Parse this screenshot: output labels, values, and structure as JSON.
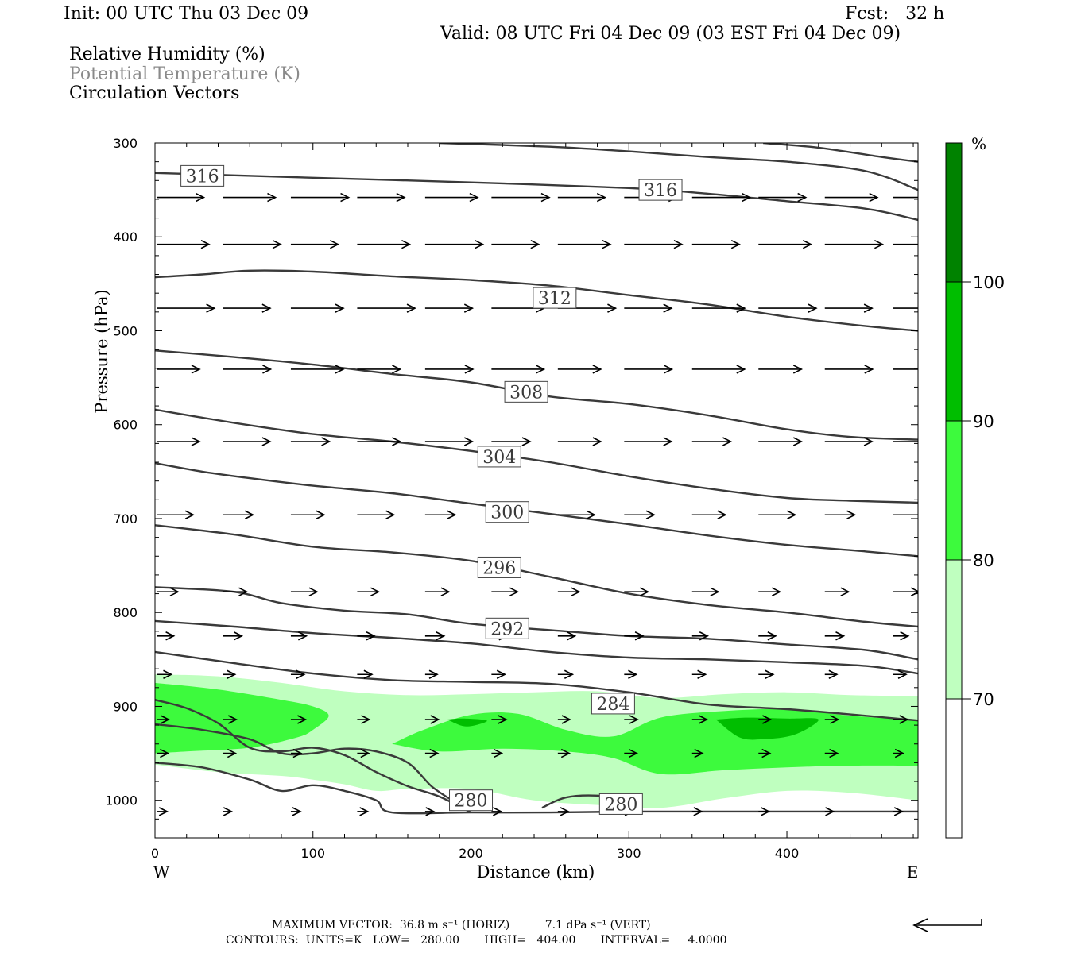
{
  "header": {
    "init": "Init: 00 UTC Thu 03 Dec 09",
    "fcst": "Fcst:   32 h",
    "valid": "Valid: 08 UTC Fri 04 Dec 09 (03 EST Fri 04 Dec 09)",
    "legend": [
      "Relative Humidity (%)",
      "Potential Temperature (K)",
      "Circulation Vectors"
    ]
  },
  "chart_data": {
    "type": "cross-section",
    "xlabel": "Distance (km)",
    "ylabel": "Pressure (hPa)",
    "xlim": [
      0,
      483
    ],
    "ylim": [
      1040,
      300
    ],
    "y_log_scale": false,
    "x_ticks": [
      0,
      100,
      200,
      300,
      400
    ],
    "y_ticks": [
      300,
      400,
      500,
      600,
      700,
      800,
      900,
      1000
    ],
    "x_end_labels": {
      "left": "W",
      "right": "E"
    },
    "colorbar": {
      "unit": "%",
      "levels": [
        70,
        80,
        90,
        100
      ],
      "colors": [
        "#ffffff",
        "#bfffbf",
        "#3dfa3d",
        "#00be00",
        "#008200"
      ]
    },
    "rh_fill": [
      {
        "level": 70,
        "color": "#bfffbf",
        "upper": [
          [
            0,
            866
          ],
          [
            40,
            868
          ],
          [
            80,
            875
          ],
          [
            120,
            884
          ],
          [
            160,
            888
          ],
          [
            200,
            887
          ],
          [
            240,
            885
          ],
          [
            280,
            884
          ],
          [
            320,
            891
          ],
          [
            360,
            887
          ],
          [
            400,
            885
          ],
          [
            440,
            888
          ],
          [
            483,
            889
          ]
        ],
        "lower": [
          [
            483,
            1000
          ],
          [
            440,
            992
          ],
          [
            400,
            990
          ],
          [
            360,
            998
          ],
          [
            320,
            1008
          ],
          [
            280,
            1005
          ],
          [
            240,
            1000
          ],
          [
            200,
            988
          ],
          [
            160,
            988
          ],
          [
            140,
            990
          ],
          [
            120,
            983
          ],
          [
            100,
            978
          ],
          [
            80,
            974
          ],
          [
            40,
            970
          ],
          [
            0,
            962
          ]
        ]
      },
      {
        "level": 80,
        "color": "#3dfa3d",
        "upper": [
          [
            0,
            875
          ],
          [
            40,
            882
          ],
          [
            80,
            893
          ],
          [
            100,
            900
          ],
          [
            110,
            910
          ],
          [
            100,
            925
          ],
          [
            90,
            933
          ],
          [
            60,
            944
          ],
          [
            20,
            948
          ],
          [
            0,
            950
          ]
        ],
        "lower": []
      },
      {
        "level": 80,
        "color": "#3dfa3d",
        "upper": [
          [
            150,
            940
          ],
          [
            170,
            925
          ],
          [
            200,
            909
          ],
          [
            230,
            908
          ],
          [
            260,
            925
          ],
          [
            290,
            932
          ],
          [
            320,
            912
          ],
          [
            360,
            905
          ],
          [
            400,
            903
          ],
          [
            440,
            910
          ],
          [
            483,
            915
          ]
        ],
        "lower": [
          [
            483,
            963
          ],
          [
            440,
            963
          ],
          [
            400,
            965
          ],
          [
            360,
            968
          ],
          [
            320,
            972
          ],
          [
            290,
            955
          ],
          [
            260,
            948
          ],
          [
            220,
            945
          ],
          [
            180,
            948
          ],
          [
            150,
            940
          ]
        ]
      },
      {
        "level": 90,
        "color": "#00be00",
        "upper": [
          [
            185,
            914
          ],
          [
            195,
            913
          ],
          [
            210,
            915
          ],
          [
            203,
            920
          ],
          [
            195,
            921
          ],
          [
            185,
            914
          ]
        ],
        "lower": []
      },
      {
        "level": 90,
        "color": "#00be00",
        "upper": [
          [
            355,
            914
          ],
          [
            375,
            912
          ],
          [
            400,
            913
          ],
          [
            420,
            914
          ],
          [
            405,
            930
          ],
          [
            385,
            935
          ],
          [
            370,
            933
          ],
          [
            355,
            914
          ]
        ],
        "lower": []
      }
    ],
    "theta_contours": [
      {
        "label": "316",
        "label_at": [
          30,
          335
        ],
        "points": [
          [
            0,
            332
          ],
          [
            100,
            337
          ],
          [
            200,
            342
          ],
          [
            300,
            348
          ],
          [
            350,
            354
          ],
          [
            400,
            362
          ],
          [
            450,
            370
          ],
          [
            483,
            382
          ]
        ]
      },
      {
        "label": "316",
        "label_at": [
          320,
          350
        ],
        "points": [
          [
            180,
            300
          ],
          [
            250,
            304
          ],
          [
            300,
            309
          ],
          [
            350,
            315
          ],
          [
            400,
            320
          ],
          [
            450,
            330
          ],
          [
            483,
            350
          ]
        ]
      },
      {
        "label": "",
        "label_at": null,
        "points": [
          [
            385,
            300
          ],
          [
            420,
            305
          ],
          [
            460,
            315
          ],
          [
            483,
            320
          ]
        ]
      },
      {
        "label": "312",
        "label_at": [
          253,
          465
        ],
        "points": [
          [
            0,
            443
          ],
          [
            30,
            440
          ],
          [
            60,
            436
          ],
          [
            100,
            437
          ],
          [
            150,
            442
          ],
          [
            200,
            446
          ],
          [
            250,
            452
          ],
          [
            300,
            462
          ],
          [
            350,
            472
          ],
          [
            400,
            485
          ],
          [
            450,
            495
          ],
          [
            483,
            500
          ]
        ]
      },
      {
        "label": "308",
        "label_at": [
          235,
          565
        ],
        "points": [
          [
            0,
            521
          ],
          [
            50,
            528
          ],
          [
            100,
            536
          ],
          [
            150,
            546
          ],
          [
            200,
            555
          ],
          [
            250,
            570
          ],
          [
            300,
            578
          ],
          [
            350,
            590
          ],
          [
            400,
            605
          ],
          [
            440,
            613
          ],
          [
            483,
            616
          ]
        ]
      },
      {
        "label": "304",
        "label_at": [
          218,
          634
        ],
        "points": [
          [
            0,
            584
          ],
          [
            50,
            598
          ],
          [
            100,
            610
          ],
          [
            150,
            618
          ],
          [
            200,
            628
          ],
          [
            250,
            640
          ],
          [
            300,
            655
          ],
          [
            350,
            668
          ],
          [
            400,
            678
          ],
          [
            440,
            681
          ],
          [
            483,
            683
          ]
        ]
      },
      {
        "label": "300",
        "label_at": [
          223,
          693
        ],
        "points": [
          [
            0,
            641
          ],
          [
            30,
            650
          ],
          [
            60,
            657
          ],
          [
            100,
            665
          ],
          [
            150,
            673
          ],
          [
            200,
            684
          ],
          [
            250,
            695
          ],
          [
            300,
            706
          ],
          [
            350,
            718
          ],
          [
            400,
            728
          ],
          [
            450,
            735
          ],
          [
            483,
            740
          ]
        ]
      },
      {
        "label": "296",
        "label_at": [
          218,
          752
        ],
        "points": [
          [
            0,
            707
          ],
          [
            50,
            717
          ],
          [
            100,
            730
          ],
          [
            150,
            736
          ],
          [
            200,
            745
          ],
          [
            250,
            762
          ],
          [
            300,
            780
          ],
          [
            350,
            792
          ],
          [
            400,
            800
          ],
          [
            450,
            810
          ],
          [
            483,
            815
          ]
        ]
      },
      {
        "label": "292",
        "label_at": [
          223,
          817
        ],
        "points": [
          [
            0,
            773
          ],
          [
            50,
            778
          ],
          [
            80,
            790
          ],
          [
            120,
            798
          ],
          [
            160,
            802
          ],
          [
            200,
            812
          ],
          [
            260,
            820
          ],
          [
            300,
            825
          ],
          [
            350,
            828
          ],
          [
            400,
            834
          ],
          [
            450,
            840
          ],
          [
            483,
            850
          ]
        ]
      },
      {
        "label": "",
        "label_at": null,
        "points": [
          [
            0,
            809
          ],
          [
            50,
            815
          ],
          [
            100,
            822
          ],
          [
            150,
            827
          ],
          [
            200,
            833
          ],
          [
            250,
            842
          ],
          [
            300,
            848
          ],
          [
            350,
            850
          ],
          [
            400,
            853
          ],
          [
            450,
            857
          ],
          [
            483,
            865
          ]
        ]
      },
      {
        "label": "",
        "label_at": null,
        "points": [
          [
            0,
            842
          ],
          [
            50,
            854
          ],
          [
            100,
            865
          ],
          [
            150,
            872
          ],
          [
            200,
            874
          ],
          [
            250,
            876
          ],
          [
            300,
            885
          ],
          [
            350,
            898
          ],
          [
            400,
            903
          ],
          [
            450,
            910
          ],
          [
            483,
            915
          ]
        ]
      },
      {
        "label": "284",
        "label_at": [
          290,
          897
        ],
        "points": [
          [
            0,
            893
          ],
          [
            20,
            902
          ],
          [
            40,
            918
          ],
          [
            60,
            944
          ],
          [
            80,
            948
          ],
          [
            100,
            944
          ],
          [
            120,
            952
          ],
          [
            140,
            970
          ],
          [
            160,
            985
          ],
          [
            180,
            996
          ],
          [
            200,
            1013
          ]
        ]
      },
      {
        "label": "",
        "label_at": null,
        "points": [
          [
            0,
            919
          ],
          [
            30,
            925
          ],
          [
            60,
            935
          ],
          [
            80,
            950
          ],
          [
            100,
            950
          ],
          [
            120,
            945
          ],
          [
            140,
            948
          ],
          [
            160,
            960
          ],
          [
            175,
            985
          ],
          [
            188,
            1000
          ]
        ]
      },
      {
        "label": "280",
        "label_at": [
          200,
          1000
        ],
        "points": [
          [
            0,
            960
          ],
          [
            30,
            965
          ],
          [
            60,
            978
          ],
          [
            80,
            990
          ],
          [
            100,
            984
          ],
          [
            120,
            990
          ],
          [
            140,
            1000
          ],
          [
            150,
            1013
          ],
          [
            200,
            1013
          ],
          [
            250,
            1013
          ],
          [
            300,
            1012
          ],
          [
            350,
            1012
          ],
          [
            400,
            1012
          ],
          [
            483,
            1012
          ]
        ]
      },
      {
        "label": "280",
        "label_at": [
          295,
          1004
        ],
        "points": [
          [
            245,
            1008
          ],
          [
            260,
            997
          ],
          [
            280,
            995
          ],
          [
            300,
            1000
          ]
        ]
      }
    ],
    "vector_rows": [
      {
        "p": 358,
        "u": 0.55
      },
      {
        "p": 408,
        "u": 0.55
      },
      {
        "p": 476,
        "u": 0.55
      },
      {
        "p": 541,
        "u": 0.5
      },
      {
        "p": 618,
        "u": 0.45
      },
      {
        "p": 696,
        "u": 0.35
      },
      {
        "p": 778,
        "u": 0.25
      },
      {
        "p": 825,
        "u": 0.18
      },
      {
        "p": 866,
        "u": 0.14
      },
      {
        "p": 914,
        "u": 0.14
      },
      {
        "p": 950,
        "u": 0.12
      },
      {
        "p": 1012,
        "u": 0.1
      }
    ],
    "vector_x_km": [
      0,
      42,
      85,
      127,
      170,
      212,
      254,
      296,
      339,
      381,
      423,
      466
    ]
  },
  "footer": {
    "max_vector": "MAXIMUM VECTOR:  36.8 m s⁻¹ (HORIZ)          7.1 dPa s⁻¹ (VERT)",
    "contours": "CONTOURS:  UNITS=K   LOW=   280.00       HIGH=   404.00       INTERVAL=     4.0000"
  }
}
